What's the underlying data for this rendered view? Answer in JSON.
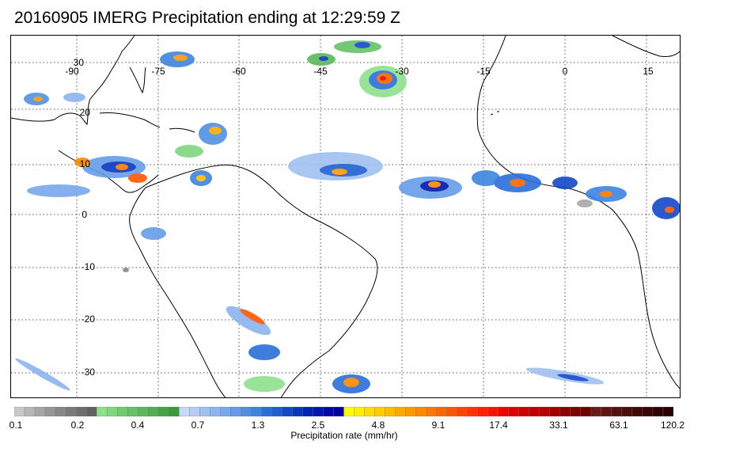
{
  "title": "20160905 IMERG Precipitation ending at 12:29:59 Z",
  "map": {
    "lon_labels": [
      "-90",
      "-75",
      "-60",
      "-45",
      "-30",
      "-15",
      "0",
      "15"
    ],
    "lat_labels": [
      "30",
      "20",
      "10",
      "0",
      "-10",
      "-20",
      "-30"
    ],
    "coastline_color": "#000000",
    "gridline_color": "#555555"
  },
  "colorbar": {
    "colors": [
      "#c8c8c8",
      "#b6b6b6",
      "#a6a6a6",
      "#969696",
      "#888888",
      "#7a7a7a",
      "#6e6e6e",
      "#626262",
      "#8ee08e",
      "#7ed67e",
      "#6ecc6e",
      "#64c264",
      "#5ab85a",
      "#50ae50",
      "#46a446",
      "#3c9a3c",
      "#c8d8f8",
      "#b4ccf6",
      "#a0c0f2",
      "#8cb4f0",
      "#78a8ec",
      "#649ce8",
      "#5090e4",
      "#3c84e0",
      "#2a6ed8",
      "#1f5ed0",
      "#1448c8",
      "#0a34c0",
      "#0020b8",
      "#0014b0",
      "#0008a8",
      "#0000a0",
      "#ffff00",
      "#ffee00",
      "#ffdd00",
      "#ffcc00",
      "#ffbb00",
      "#ffaa00",
      "#ff9900",
      "#ff8800",
      "#ff7700",
      "#ff6600",
      "#ff5500",
      "#ff4400",
      "#ff3300",
      "#ff2200",
      "#ff1100",
      "#f00000",
      "#e00000",
      "#d00000",
      "#c00000",
      "#b00000",
      "#a00000",
      "#900000",
      "#800000",
      "#700000",
      "#6a1a1a",
      "#601515",
      "#561010",
      "#4c0c0c",
      "#420808",
      "#380404",
      "#300202",
      "#280000"
    ],
    "tick_labels": [
      "0.1",
      "0.2",
      "0.4",
      "0.7",
      "1.3",
      "2.5",
      "4.8",
      "9.1",
      "17.4",
      "33.1",
      "63.1",
      "120.2"
    ],
    "caption": "Precipitation rate (mm/hr)"
  }
}
